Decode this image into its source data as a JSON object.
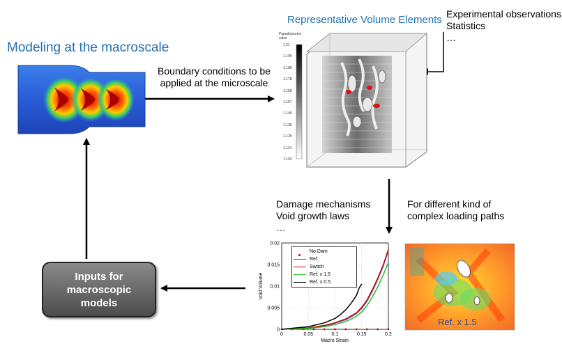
{
  "macro": {
    "title": "Modeling at the macroscale",
    "boundary_text": [
      "Boundary conditions to be",
      "applied at the microscale"
    ]
  },
  "rve": {
    "title": "Representative Volume Elements",
    "colorbar_label": [
      "Papadopoulos",
      "value"
    ],
    "colorbar_ticks": [
      "1.21",
      "1.199",
      "1.189",
      "1.178",
      "1.168",
      "1.157",
      "1.146",
      "1.136",
      "1.125",
      "1.114",
      "1.103"
    ]
  },
  "observations": {
    "lines": [
      "Experimental observations",
      "Statistics",
      "…"
    ]
  },
  "damage": {
    "lines": [
      "Damage mechanisms",
      "Void growth laws",
      "…"
    ]
  },
  "loading": {
    "lines": [
      "For different kind of",
      "complex loading paths"
    ]
  },
  "inputs_box": {
    "lines": [
      "Inputs for",
      "macroscopic",
      "models"
    ]
  },
  "map_label": "Ref. x 1.5",
  "colors": {
    "title_blue": "#1f6fb4",
    "inputs_box": "#5a5a5a"
  },
  "chart_data": {
    "type": "line",
    "xlabel": "Macro Strain",
    "ylabel": "Void Volume",
    "xlim": [
      0,
      0.2
    ],
    "ylim": [
      0,
      0.02
    ],
    "xticks": [
      "0",
      "0.05",
      "0.1",
      "0.15",
      "0.2"
    ],
    "yticks": [
      "0",
      "0.005",
      "0.01",
      "0.015",
      "0.02"
    ],
    "grid": true,
    "legend_position": "top-left",
    "series": [
      {
        "name": "No Dam",
        "color": "#cc0000",
        "style": "dots",
        "x": [
          0,
          0.02,
          0.04,
          0.06,
          0.08,
          0.1,
          0.12,
          0.14,
          0.16,
          0.18,
          0.2
        ],
        "y": [
          0,
          0,
          0,
          0,
          0,
          0,
          0,
          0,
          0,
          0,
          0
        ]
      },
      {
        "name": "Ref.",
        "color": "#5566dd",
        "style": "line",
        "x": [
          0,
          0.05,
          0.08,
          0.1,
          0.12,
          0.14,
          0.15,
          0.16,
          0.17,
          0.18,
          0.19,
          0.2
        ],
        "y": [
          0,
          0.0003,
          0.0008,
          0.0014,
          0.0022,
          0.0036,
          0.0048,
          0.0065,
          0.0088,
          0.0115,
          0.0145,
          0.0182
        ]
      },
      {
        "name": "Switch",
        "color": "#cc0000",
        "style": "line",
        "x": [
          0,
          0.05,
          0.08,
          0.1,
          0.12,
          0.14,
          0.15,
          0.16,
          0.17,
          0.18,
          0.19,
          0.2
        ],
        "y": [
          0,
          0.0003,
          0.0009,
          0.0015,
          0.0024,
          0.0038,
          0.0051,
          0.0068,
          0.0092,
          0.0118,
          0.0148,
          0.0185
        ]
      },
      {
        "name": "Ref. x 1.5",
        "color": "#22bb22",
        "style": "line",
        "x": [
          0,
          0.05,
          0.08,
          0.1,
          0.12,
          0.14,
          0.15,
          0.16,
          0.17,
          0.18,
          0.19,
          0.2
        ],
        "y": [
          0,
          0.0002,
          0.0006,
          0.0011,
          0.0018,
          0.003,
          0.004,
          0.0055,
          0.0075,
          0.0098,
          0.0125,
          0.0155
        ]
      },
      {
        "name": "Ref. x 0.5",
        "color": "#000000",
        "style": "line",
        "x": [
          0,
          0.05,
          0.08,
          0.1,
          0.11,
          0.12,
          0.13,
          0.14,
          0.145,
          0.15
        ],
        "y": [
          0,
          0.0006,
          0.0015,
          0.0025,
          0.0034,
          0.0045,
          0.006,
          0.0078,
          0.0095,
          0.0105
        ]
      }
    ]
  }
}
